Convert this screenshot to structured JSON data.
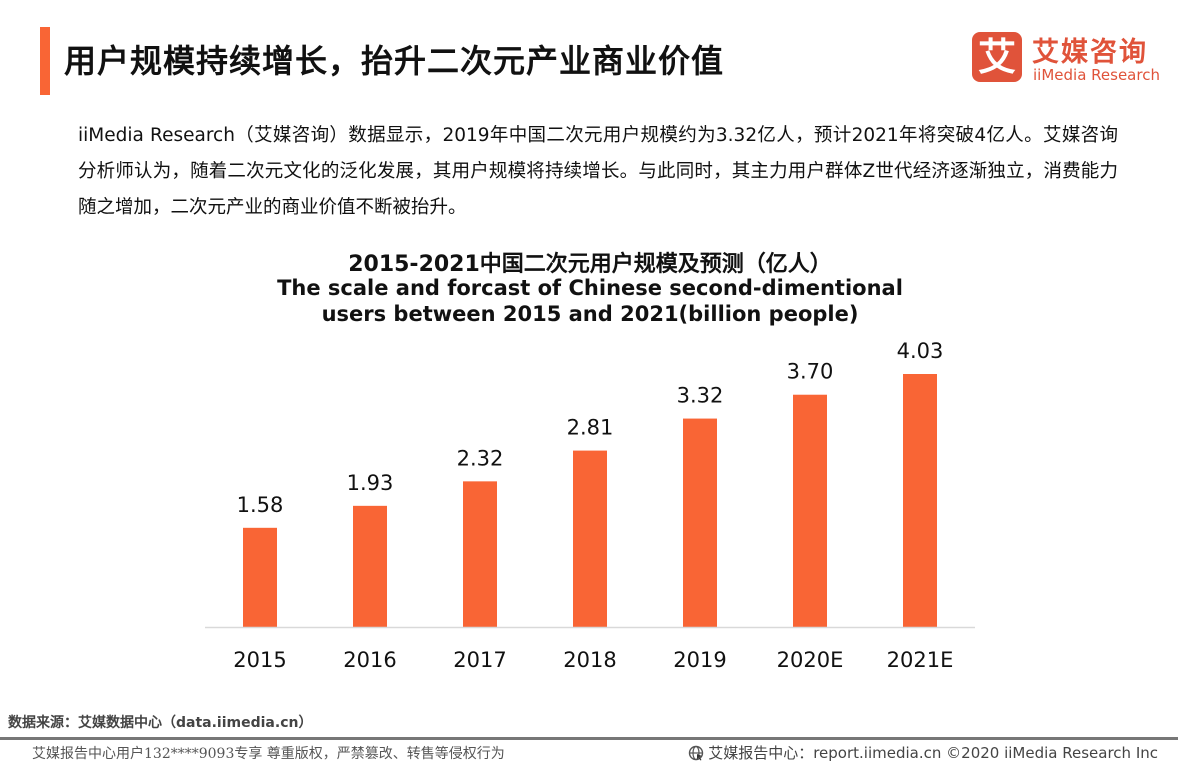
{
  "header": {
    "title": "用户规模持续增长，抬升二次元产业商业价值",
    "accent_color": "#f96535"
  },
  "logo": {
    "mark": "艾",
    "name_cn": "艾媒咨询",
    "name_en": "iiMedia Research",
    "color": "#e0533a"
  },
  "intro": {
    "text": "iiMedia Research（艾媒咨询）数据显示，2019年中国二次元用户规模约为3.32亿人，预计2021年将突破4亿人。艾媒咨询分析师认为，随着二次元文化的泛化发展，其用户规模将持续增长。与此同时，其主力用户群体Z世代经济逐渐独立，消费能力随之增加，二次元产业的商业价值不断被抬升。"
  },
  "chart_data": {
    "type": "bar",
    "title": "2015-2021中国二次元用户规模及预测（亿人）",
    "subtitle_line1": "The scale and forcast of Chinese second-dimentional",
    "subtitle_line2": "users between 2015 and 2021(billion people)",
    "categories": [
      "2015",
      "2016",
      "2017",
      "2018",
      "2019",
      "2020E",
      "2021E"
    ],
    "values": [
      1.58,
      1.93,
      2.32,
      2.81,
      3.32,
      3.7,
      4.03
    ],
    "value_labels": [
      "1.58",
      "1.93",
      "2.32",
      "2.81",
      "3.32",
      "3.70",
      "4.03"
    ],
    "xlabel": "",
    "ylabel": "",
    "ylim": [
      0,
      4.03
    ],
    "grid": false,
    "legend": "none",
    "bar_color": "#f96535",
    "axis_color": "#d9d9d9"
  },
  "footer": {
    "source": "数据来源：艾媒数据中心（data.iimedia.cn）",
    "watermark": "艾媒报告中心用户132****9093专享 尊重版权，严禁篡改、转售等侵权行为",
    "copyright": "艾媒报告中心：report.iimedia.cn ©2020  iiMedia Research  Inc"
  }
}
